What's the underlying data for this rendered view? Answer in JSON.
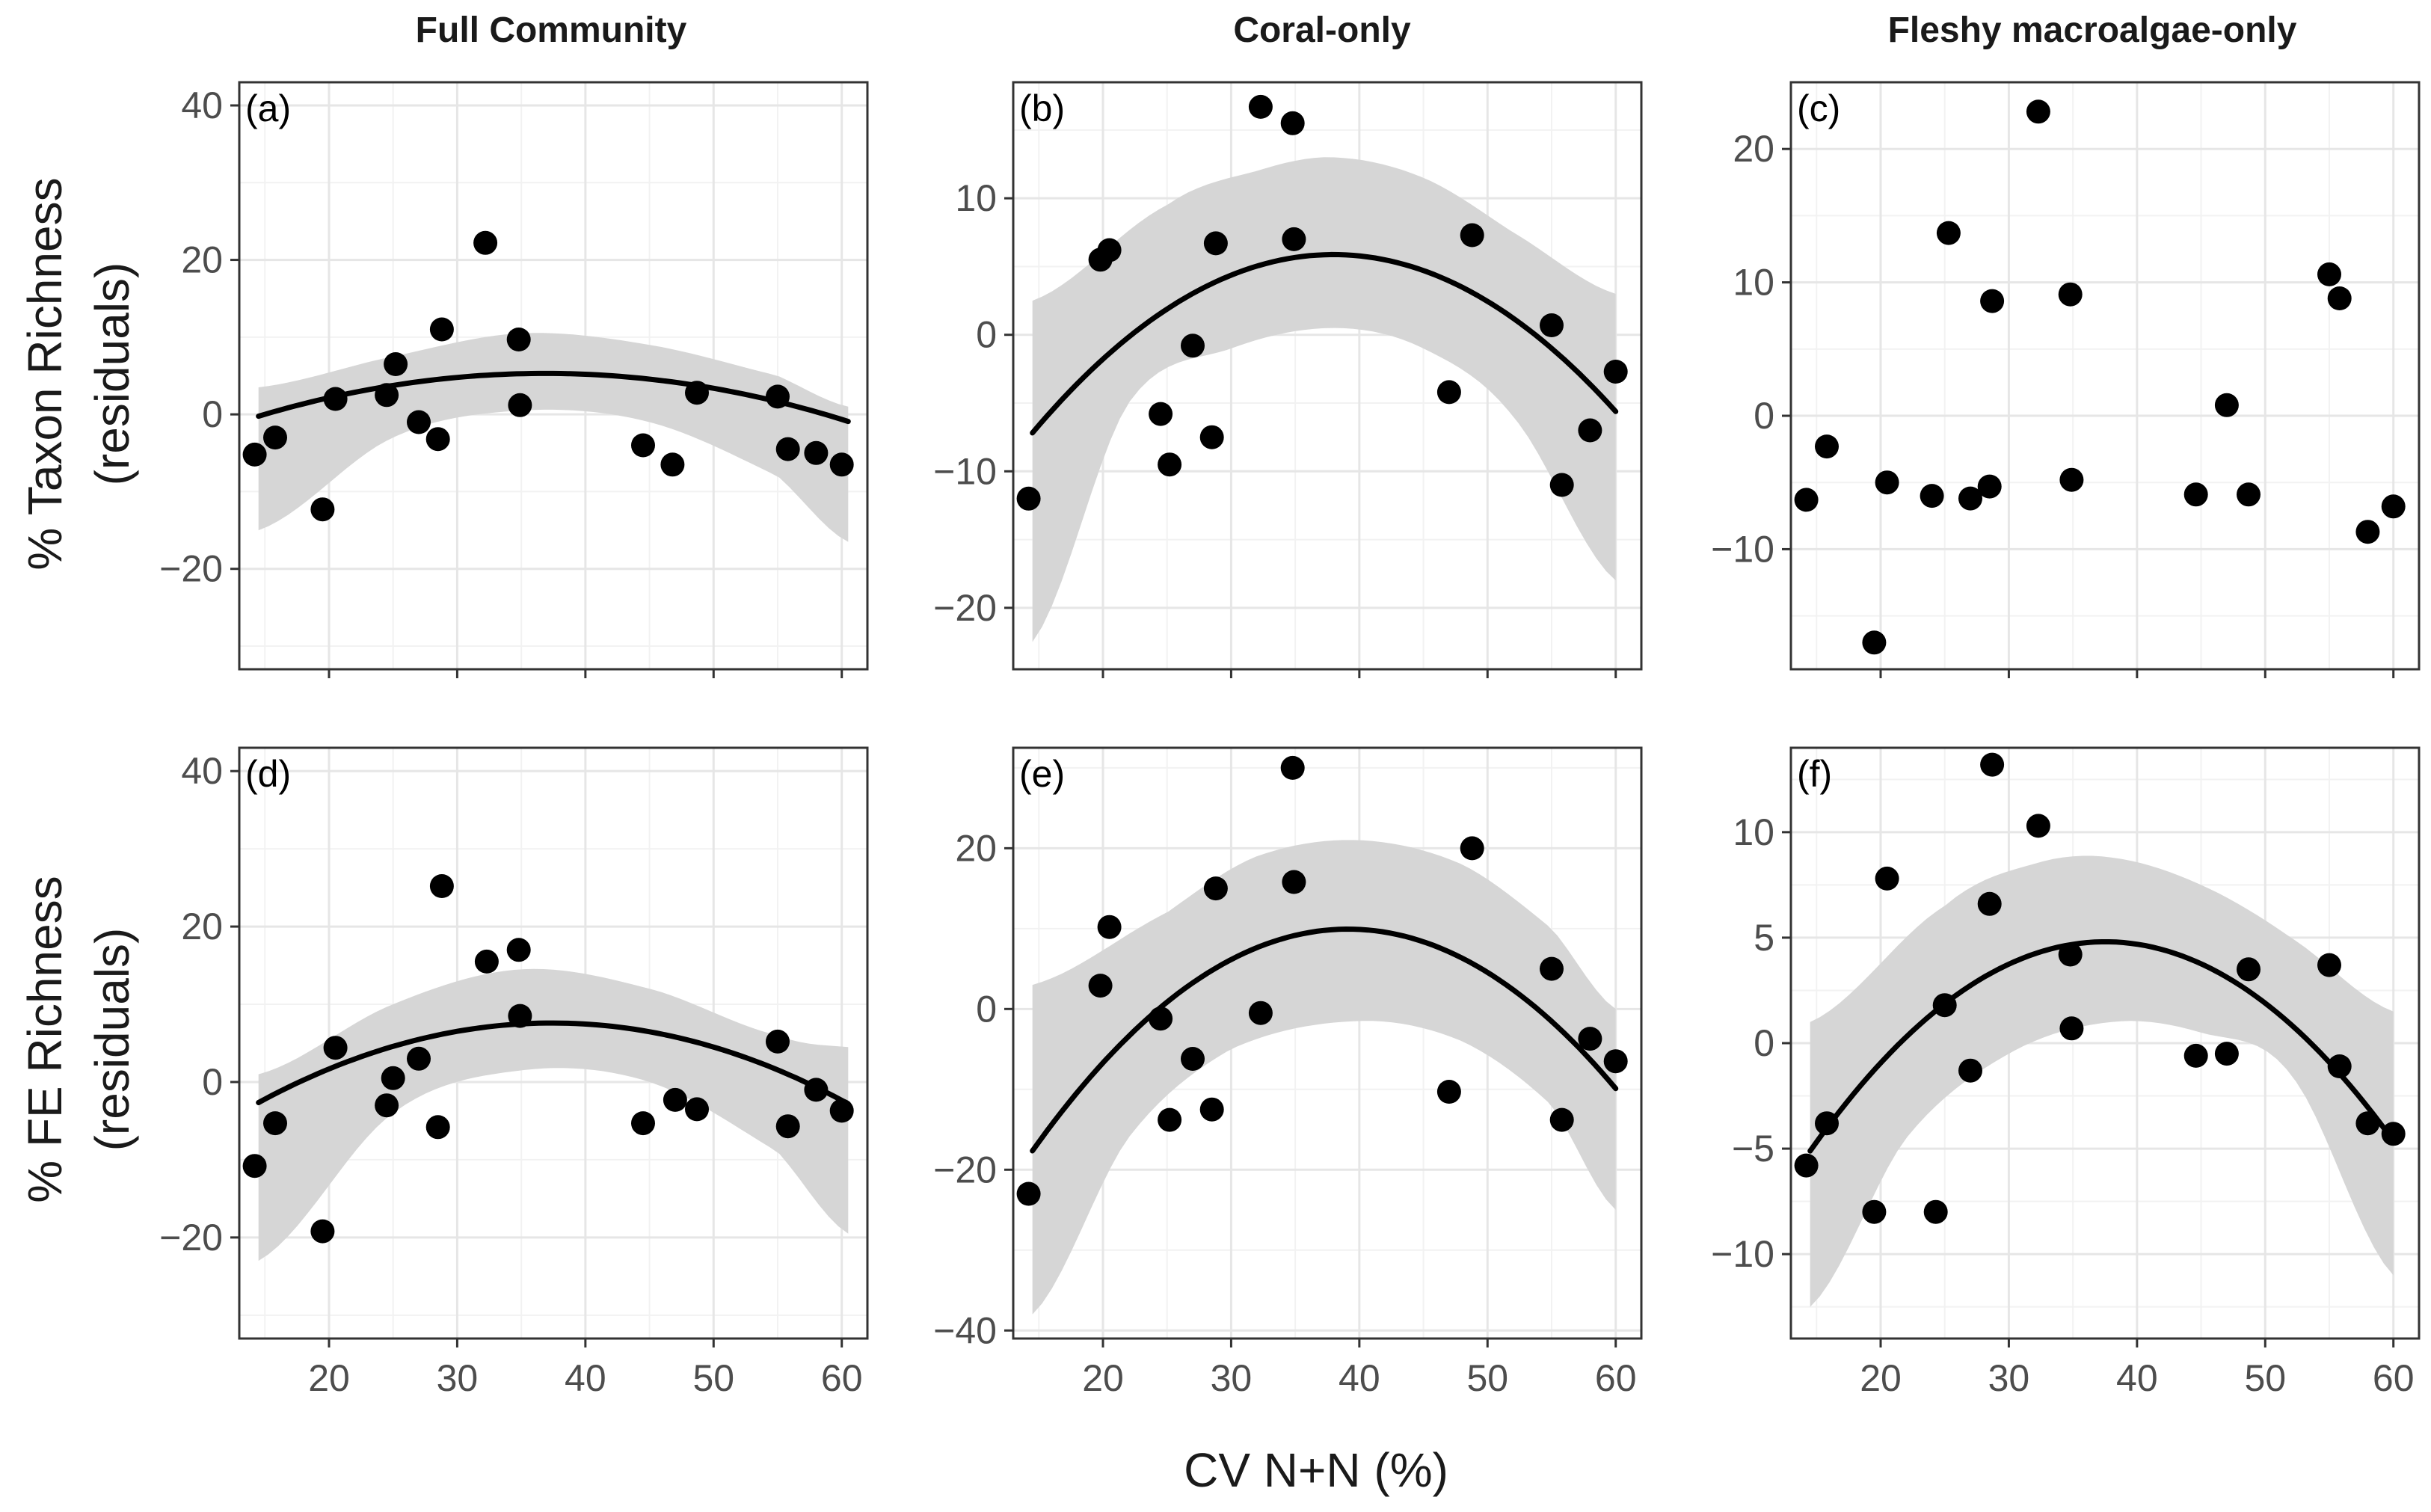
{
  "chart_data": {
    "type": "scatter",
    "xlabel": "CV N+N (%)",
    "x_ticks": [
      20,
      30,
      40,
      50,
      60
    ],
    "row_ylabels": [
      [
        "% Taxon Richness",
        "(residuals)"
      ],
      [
        "% FE Richness",
        "(residuals)"
      ]
    ],
    "columns": [
      "Full Community",
      "Coral-only",
      "Fleshy macroalgae-only"
    ],
    "panels": [
      {
        "tag": "(a)",
        "xlim": [
          13,
          62
        ],
        "ylim": [
          -33,
          43
        ],
        "y_ticks": [
          -20,
          0,
          20,
          40
        ],
        "y_tick_labels": [
          "−20",
          "0",
          "20",
          "40"
        ],
        "points": [
          [
            14.2,
            -5.2
          ],
          [
            15.8,
            -3
          ],
          [
            19.5,
            -12.3
          ],
          [
            20.5,
            2
          ],
          [
            24.5,
            2.5
          ],
          [
            25.2,
            6.5
          ],
          [
            27,
            -1
          ],
          [
            28.5,
            -3.2
          ],
          [
            28.8,
            11
          ],
          [
            32.2,
            22.2
          ],
          [
            34.8,
            9.7
          ],
          [
            34.9,
            1.2
          ],
          [
            44.5,
            -4
          ],
          [
            46.8,
            -6.5
          ],
          [
            48.7,
            2.8
          ],
          [
            55,
            2.3
          ],
          [
            55.8,
            -4.5
          ],
          [
            58,
            -5
          ],
          [
            60,
            -6.5
          ]
        ],
        "fit": {
          "x": [
            14.5,
            60.5
          ],
          "a": -0.0111,
          "b": 0.8178,
          "c": -9.76
        },
        "band": {
          "upper": [
            [
              14.5,
              3.5
            ],
            [
              25,
              7.5
            ],
            [
              35,
              10.5
            ],
            [
              45,
              9
            ],
            [
              55,
              5
            ],
            [
              60.5,
              1
            ]
          ],
          "lower": [
            [
              14.5,
              -15
            ],
            [
              25,
              -3
            ],
            [
              35,
              0.5
            ],
            [
              45,
              -1
            ],
            [
              55,
              -8
            ],
            [
              60.5,
              -16.5
            ]
          ]
        }
      },
      {
        "tag": "(b)",
        "xlim": [
          13,
          62
        ],
        "ylim": [
          -24.5,
          18.5
        ],
        "y_ticks": [
          -20,
          -10,
          0,
          10
        ],
        "y_tick_labels": [
          "−20",
          "−10",
          "0",
          "10"
        ],
        "points": [
          [
            14.2,
            -12
          ],
          [
            19.8,
            5.5
          ],
          [
            20.5,
            6.2
          ],
          [
            24.5,
            -5.8
          ],
          [
            25.2,
            -9.5
          ],
          [
            27,
            -0.8
          ],
          [
            28.5,
            -7.5
          ],
          [
            28.8,
            6.7
          ],
          [
            32.3,
            16.7
          ],
          [
            34.8,
            15.5
          ],
          [
            34.9,
            7
          ],
          [
            47,
            -4.2
          ],
          [
            48.8,
            7.3
          ],
          [
            55,
            0.7
          ],
          [
            55.8,
            -11
          ],
          [
            58,
            -7
          ],
          [
            60,
            -2.7
          ]
        ],
        "fit": {
          "x": [
            14.5,
            60
          ],
          "a": -0.0237,
          "b": 1.8,
          "c": -28.3
        },
        "band": {
          "upper": [
            [
              14.5,
              2.5
            ],
            [
              25,
              9.5
            ],
            [
              32,
              12
            ],
            [
              38,
              13
            ],
            [
              45,
              11.5
            ],
            [
              52,
              7.5
            ],
            [
              60,
              3
            ]
          ],
          "lower": [
            [
              14.5,
              -22.5
            ],
            [
              22,
              -5
            ],
            [
              30,
              -1
            ],
            [
              38,
              0.5
            ],
            [
              45,
              -1
            ],
            [
              52,
              -6
            ],
            [
              60,
              -18
            ]
          ]
        }
      },
      {
        "tag": "(c)",
        "xlim": [
          13,
          62
        ],
        "ylim": [
          -19,
          25
        ],
        "y_ticks": [
          -10,
          0,
          10,
          20
        ],
        "y_tick_labels": [
          "−10",
          "0",
          "10",
          "20"
        ],
        "points": [
          [
            14.2,
            -6.3
          ],
          [
            15.8,
            -2.3
          ],
          [
            19.5,
            -17
          ],
          [
            20.5,
            -5
          ],
          [
            24,
            -6
          ],
          [
            25.3,
            13.7
          ],
          [
            27,
            -6.2
          ],
          [
            28.5,
            -5.3
          ],
          [
            28.7,
            8.6
          ],
          [
            32.3,
            22.8
          ],
          [
            34.8,
            9.1
          ],
          [
            34.9,
            -4.8
          ],
          [
            44.6,
            -5.9
          ],
          [
            47,
            0.8
          ],
          [
            48.7,
            -5.9
          ],
          [
            55,
            10.6
          ],
          [
            55.8,
            8.8
          ],
          [
            58,
            -8.7
          ],
          [
            60,
            -6.8
          ]
        ],
        "fit": null,
        "band": null
      },
      {
        "tag": "(d)",
        "xlim": [
          13,
          62
        ],
        "ylim": [
          -33,
          43
        ],
        "y_ticks": [
          -20,
          0,
          20,
          40
        ],
        "y_tick_labels": [
          "−20",
          "0",
          "20",
          "40"
        ],
        "points": [
          [
            14.2,
            -10.8
          ],
          [
            15.8,
            -5.3
          ],
          [
            19.5,
            -19.2
          ],
          [
            20.5,
            4.4
          ],
          [
            24.5,
            -3
          ],
          [
            25,
            0.5
          ],
          [
            27,
            3
          ],
          [
            28.5,
            -5.8
          ],
          [
            28.8,
            25.2
          ],
          [
            32.3,
            15.5
          ],
          [
            34.8,
            17
          ],
          [
            34.9,
            8.5
          ],
          [
            44.5,
            -5.3
          ],
          [
            47,
            -2.3
          ],
          [
            48.7,
            -3.5
          ],
          [
            55,
            5.2
          ],
          [
            55.8,
            -5.7
          ],
          [
            58,
            -1
          ],
          [
            60,
            -3.7
          ]
        ],
        "fit": {
          "x": [
            14.5,
            60.5
          ],
          "a": -0.0195,
          "b": 1.459,
          "c": -19.7
        },
        "band": {
          "upper": [
            [
              14.5,
              1
            ],
            [
              25,
              10
            ],
            [
              35,
              14.5
            ],
            [
              45,
              12
            ],
            [
              55,
              6
            ],
            [
              60.5,
              4.5
            ]
          ],
          "lower": [
            [
              14.5,
              -23
            ],
            [
              25,
              -4
            ],
            [
              35,
              1.5
            ],
            [
              45,
              0
            ],
            [
              55,
              -9
            ],
            [
              60.5,
              -19.5
            ]
          ]
        }
      },
      {
        "tag": "(e)",
        "xlim": [
          13,
          62
        ],
        "ylim": [
          -41,
          32.5
        ],
        "y_ticks": [
          -40,
          -20,
          0,
          20
        ],
        "y_tick_labels": [
          "−40",
          "−20",
          "0",
          "20"
        ],
        "points": [
          [
            14.2,
            -23
          ],
          [
            19.8,
            2.9
          ],
          [
            20.5,
            10.2
          ],
          [
            24.5,
            -1.2
          ],
          [
            25.2,
            -13.8
          ],
          [
            27,
            -6.2
          ],
          [
            28.5,
            -12.5
          ],
          [
            28.8,
            15
          ],
          [
            32.3,
            -0.5
          ],
          [
            34.8,
            30
          ],
          [
            34.9,
            15.8
          ],
          [
            47,
            -10.3
          ],
          [
            48.8,
            20
          ],
          [
            55,
            5
          ],
          [
            55.8,
            -13.8
          ],
          [
            58,
            -3.7
          ],
          [
            60,
            -6.5
          ]
        ],
        "fit": {
          "x": [
            14.5,
            60
          ],
          "a": -0.0455,
          "b": 3.56,
          "c": -59.7
        },
        "band": {
          "upper": [
            [
              14.5,
              3
            ],
            [
              25,
              12
            ],
            [
              32,
              19
            ],
            [
              40,
              21
            ],
            [
              48,
              18
            ],
            [
              55,
              10
            ],
            [
              60,
              0
            ]
          ],
          "lower": [
            [
              14.5,
              -38
            ],
            [
              22,
              -16
            ],
            [
              30,
              -5
            ],
            [
              40,
              -1.5
            ],
            [
              48,
              -4
            ],
            [
              55,
              -12
            ],
            [
              60,
              -25
            ]
          ]
        }
      },
      {
        "tag": "(f)",
        "xlim": [
          13,
          62
        ],
        "ylim": [
          -14,
          14
        ],
        "y_ticks": [
          -10,
          -5,
          0,
          5,
          10
        ],
        "y_tick_labels": [
          "−10",
          "−5",
          "0",
          "5",
          "10"
        ],
        "points": [
          [
            14.2,
            -5.8
          ],
          [
            15.8,
            -3.8
          ],
          [
            19.5,
            -8
          ],
          [
            20.5,
            7.8
          ],
          [
            24.3,
            -8
          ],
          [
            25,
            1.8
          ],
          [
            27,
            -1.3
          ],
          [
            28.5,
            6.6
          ],
          [
            28.7,
            13.2
          ],
          [
            32.3,
            10.3
          ],
          [
            34.8,
            4.2
          ],
          [
            34.9,
            0.7
          ],
          [
            44.6,
            -0.6
          ],
          [
            47,
            -0.5
          ],
          [
            48.7,
            3.5
          ],
          [
            55,
            3.7
          ],
          [
            55.8,
            -1.1
          ],
          [
            58,
            -3.8
          ],
          [
            60,
            -4.3
          ]
        ],
        "fit": {
          "x": [
            14.5,
            60
          ],
          "a": -0.0187,
          "b": 1.4035,
          "c": -21.53
        },
        "band": {
          "upper": [
            [
              14.5,
              1
            ],
            [
              25,
              6.5
            ],
            [
              32,
              8.5
            ],
            [
              38,
              8.8
            ],
            [
              45,
              7.5
            ],
            [
              52,
              5
            ],
            [
              60,
              1.5
            ]
          ],
          "lower": [
            [
              14.5,
              -12.5
            ],
            [
              22,
              -4.5
            ],
            [
              30,
              -0.5
            ],
            [
              38,
              1
            ],
            [
              45,
              0.5
            ],
            [
              52,
              -1.5
            ],
            [
              60,
              -11
            ]
          ]
        }
      }
    ]
  }
}
